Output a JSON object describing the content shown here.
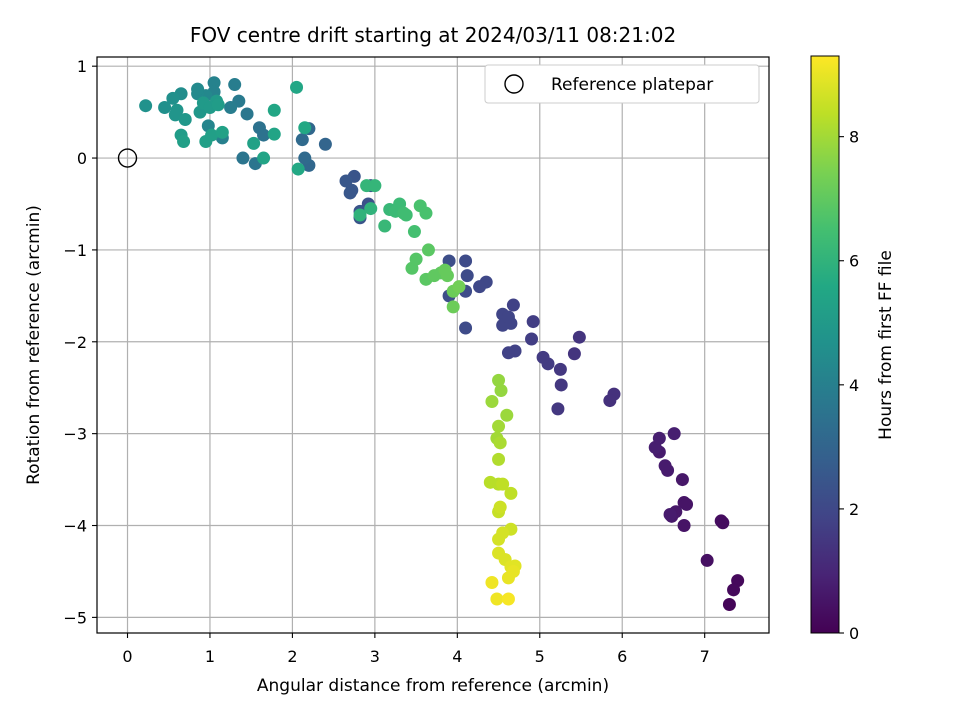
{
  "chart_data": {
    "type": "scatter",
    "title": "FOV centre drift starting at 2024/03/11 08:21:02",
    "xlabel": "Angular distance from reference (arcmin)",
    "ylabel": "Rotation from reference (arcmin)",
    "xlim": [
      -0.37,
      7.78
    ],
    "ylim": [
      -5.17,
      1.1
    ],
    "xticks": [
      0,
      1,
      2,
      3,
      4,
      5,
      6,
      7
    ],
    "yticks": [
      -5,
      -4,
      -3,
      -2,
      -1,
      0,
      1
    ],
    "grid": true,
    "legend": {
      "label": "Reference platepar",
      "placement": "top-right"
    },
    "reference_point": {
      "x": 0,
      "y": 0
    },
    "colorbar": {
      "label": "Hours from first FF file",
      "range": [
        0,
        9.3
      ],
      "ticks": [
        0,
        2,
        4,
        6,
        8
      ],
      "colormap": "viridis"
    },
    "points": [
      {
        "x": 7.3,
        "y": -4.86,
        "t": 0.1
      },
      {
        "x": 7.4,
        "y": -4.6,
        "t": 0.2
      },
      {
        "x": 7.35,
        "y": -4.7,
        "t": 0.2
      },
      {
        "x": 7.2,
        "y": -3.95,
        "t": 0.3
      },
      {
        "x": 7.22,
        "y": -3.97,
        "t": 0.3
      },
      {
        "x": 7.03,
        "y": -4.38,
        "t": 0.4
      },
      {
        "x": 6.75,
        "y": -3.75,
        "t": 0.5
      },
      {
        "x": 6.78,
        "y": -3.77,
        "t": 0.5
      },
      {
        "x": 6.75,
        "y": -4.0,
        "t": 0.5
      },
      {
        "x": 6.65,
        "y": -3.85,
        "t": 0.6
      },
      {
        "x": 6.6,
        "y": -3.9,
        "t": 0.6
      },
      {
        "x": 6.73,
        "y": -3.5,
        "t": 0.6
      },
      {
        "x": 6.55,
        "y": -3.4,
        "t": 0.7
      },
      {
        "x": 6.52,
        "y": -3.35,
        "t": 0.7
      },
      {
        "x": 6.45,
        "y": -3.2,
        "t": 0.7
      },
      {
        "x": 6.4,
        "y": -3.15,
        "t": 0.8
      },
      {
        "x": 6.45,
        "y": -3.05,
        "t": 0.8
      },
      {
        "x": 6.63,
        "y": -3.0,
        "t": 0.8
      },
      {
        "x": 6.58,
        "y": -3.88,
        "t": 0.7
      },
      {
        "x": 5.9,
        "y": -2.57,
        "t": 1.3
      },
      {
        "x": 5.85,
        "y": -2.64,
        "t": 1.3
      },
      {
        "x": 5.48,
        "y": -1.95,
        "t": 1.4
      },
      {
        "x": 5.42,
        "y": -2.13,
        "t": 1.4
      },
      {
        "x": 5.25,
        "y": -2.3,
        "t": 1.5
      },
      {
        "x": 5.22,
        "y": -2.73,
        "t": 1.5
      },
      {
        "x": 5.26,
        "y": -2.47,
        "t": 1.5
      },
      {
        "x": 5.1,
        "y": -2.24,
        "t": 1.6
      },
      {
        "x": 5.04,
        "y": -2.17,
        "t": 1.6
      },
      {
        "x": 4.92,
        "y": -1.78,
        "t": 1.7
      },
      {
        "x": 4.9,
        "y": -1.97,
        "t": 1.7
      },
      {
        "x": 4.7,
        "y": -2.1,
        "t": 1.8
      },
      {
        "x": 4.62,
        "y": -2.12,
        "t": 1.8
      },
      {
        "x": 4.68,
        "y": -1.6,
        "t": 1.8
      },
      {
        "x": 4.65,
        "y": -1.8,
        "t": 1.9
      },
      {
        "x": 4.55,
        "y": -1.7,
        "t": 1.9
      },
      {
        "x": 4.55,
        "y": -1.82,
        "t": 1.9
      },
      {
        "x": 4.62,
        "y": -1.73,
        "t": 1.9
      },
      {
        "x": 4.35,
        "y": -1.35,
        "t": 2.0
      },
      {
        "x": 4.27,
        "y": -1.4,
        "t": 2.0
      },
      {
        "x": 4.1,
        "y": -1.85,
        "t": 2.1
      },
      {
        "x": 4.1,
        "y": -1.12,
        "t": 2.1
      },
      {
        "x": 4.12,
        "y": -1.28,
        "t": 2.1
      },
      {
        "x": 4.1,
        "y": -1.45,
        "t": 2.1
      },
      {
        "x": 3.9,
        "y": -1.5,
        "t": 2.2
      },
      {
        "x": 3.9,
        "y": -1.12,
        "t": 2.2
      },
      {
        "x": 2.95,
        "y": -0.3,
        "t": 2.3
      },
      {
        "x": 2.92,
        "y": -0.5,
        "t": 2.3
      },
      {
        "x": 2.82,
        "y": -0.58,
        "t": 2.4
      },
      {
        "x": 2.82,
        "y": -0.65,
        "t": 2.4
      },
      {
        "x": 2.75,
        "y": -0.2,
        "t": 2.4
      },
      {
        "x": 2.72,
        "y": -0.35,
        "t": 2.5
      },
      {
        "x": 2.7,
        "y": -0.38,
        "t": 2.5
      },
      {
        "x": 2.65,
        "y": -0.25,
        "t": 2.5
      },
      {
        "x": 2.4,
        "y": 0.15,
        "t": 3.0
      },
      {
        "x": 2.2,
        "y": 0.32,
        "t": 3.1
      },
      {
        "x": 2.2,
        "y": -0.08,
        "t": 3.1
      },
      {
        "x": 2.15,
        "y": 0.0,
        "t": 3.2
      },
      {
        "x": 2.12,
        "y": 0.2,
        "t": 3.2
      },
      {
        "x": 1.6,
        "y": 0.33,
        "t": 3.5
      },
      {
        "x": 1.65,
        "y": 0.25,
        "t": 3.5
      },
      {
        "x": 1.55,
        "y": -0.06,
        "t": 3.6
      },
      {
        "x": 1.4,
        "y": 0.0,
        "t": 3.6
      },
      {
        "x": 1.45,
        "y": 0.48,
        "t": 3.7
      },
      {
        "x": 1.35,
        "y": 0.62,
        "t": 3.8
      },
      {
        "x": 1.3,
        "y": 0.8,
        "t": 3.9
      },
      {
        "x": 1.25,
        "y": 0.55,
        "t": 3.9
      },
      {
        "x": 1.15,
        "y": 0.22,
        "t": 4.0
      },
      {
        "x": 1.05,
        "y": 0.82,
        "t": 4.1
      },
      {
        "x": 1.05,
        "y": 0.72,
        "t": 4.1
      },
      {
        "x": 0.98,
        "y": 0.35,
        "t": 4.2
      },
      {
        "x": 0.95,
        "y": 0.68,
        "t": 4.3
      },
      {
        "x": 0.85,
        "y": 0.7,
        "t": 4.4
      },
      {
        "x": 0.85,
        "y": 0.75,
        "t": 4.4
      },
      {
        "x": 0.65,
        "y": 0.7,
        "t": 4.5
      },
      {
        "x": 0.55,
        "y": 0.65,
        "t": 4.6
      },
      {
        "x": 0.45,
        "y": 0.55,
        "t": 4.6
      },
      {
        "x": 0.22,
        "y": 0.57,
        "t": 4.7
      },
      {
        "x": 0.6,
        "y": 0.52,
        "t": 4.8
      },
      {
        "x": 0.58,
        "y": 0.47,
        "t": 4.8
      },
      {
        "x": 0.7,
        "y": 0.42,
        "t": 4.9
      },
      {
        "x": 0.88,
        "y": 0.5,
        "t": 4.9
      },
      {
        "x": 0.92,
        "y": 0.6,
        "t": 5.0
      },
      {
        "x": 1.0,
        "y": 0.55,
        "t": 5.0
      },
      {
        "x": 1.08,
        "y": 0.62,
        "t": 5.0
      },
      {
        "x": 1.1,
        "y": 0.58,
        "t": 5.1
      },
      {
        "x": 0.65,
        "y": 0.25,
        "t": 5.1
      },
      {
        "x": 0.68,
        "y": 0.18,
        "t": 5.2
      },
      {
        "x": 0.95,
        "y": 0.18,
        "t": 5.2
      },
      {
        "x": 1.02,
        "y": 0.25,
        "t": 5.2
      },
      {
        "x": 1.15,
        "y": 0.28,
        "t": 5.3
      },
      {
        "x": 1.53,
        "y": 0.16,
        "t": 5.3
      },
      {
        "x": 1.65,
        "y": 0.0,
        "t": 5.4
      },
      {
        "x": 1.78,
        "y": 0.26,
        "t": 5.4
      },
      {
        "x": 1.78,
        "y": 0.52,
        "t": 5.5
      },
      {
        "x": 2.05,
        "y": 0.77,
        "t": 5.5
      },
      {
        "x": 2.15,
        "y": 0.33,
        "t": 5.6
      },
      {
        "x": 2.07,
        "y": -0.12,
        "t": 5.6
      },
      {
        "x": 2.82,
        "y": -0.62,
        "t": 6.0
      },
      {
        "x": 2.95,
        "y": -0.55,
        "t": 6.0
      },
      {
        "x": 2.9,
        "y": -0.3,
        "t": 6.1
      },
      {
        "x": 3.0,
        "y": -0.3,
        "t": 6.1
      },
      {
        "x": 3.12,
        "y": -0.74,
        "t": 6.2
      },
      {
        "x": 3.18,
        "y": -0.56,
        "t": 6.2
      },
      {
        "x": 3.25,
        "y": -0.58,
        "t": 6.3
      },
      {
        "x": 3.3,
        "y": -0.5,
        "t": 6.3
      },
      {
        "x": 3.35,
        "y": -0.6,
        "t": 6.4
      },
      {
        "x": 3.38,
        "y": -0.62,
        "t": 6.4
      },
      {
        "x": 3.48,
        "y": -0.8,
        "t": 6.5
      },
      {
        "x": 3.55,
        "y": -0.52,
        "t": 6.6
      },
      {
        "x": 3.62,
        "y": -0.6,
        "t": 6.6
      },
      {
        "x": 3.45,
        "y": -1.2,
        "t": 6.8
      },
      {
        "x": 3.5,
        "y": -1.1,
        "t": 6.8
      },
      {
        "x": 3.65,
        "y": -1.0,
        "t": 6.9
      },
      {
        "x": 3.62,
        "y": -1.32,
        "t": 6.9
      },
      {
        "x": 3.72,
        "y": -1.28,
        "t": 7.0
      },
      {
        "x": 3.8,
        "y": -1.25,
        "t": 7.0
      },
      {
        "x": 3.85,
        "y": -1.22,
        "t": 7.1
      },
      {
        "x": 3.88,
        "y": -1.28,
        "t": 7.1
      },
      {
        "x": 3.95,
        "y": -1.45,
        "t": 7.2
      },
      {
        "x": 3.95,
        "y": -1.62,
        "t": 7.2
      },
      {
        "x": 4.02,
        "y": -1.4,
        "t": 7.3
      },
      {
        "x": 4.5,
        "y": -2.42,
        "t": 7.8
      },
      {
        "x": 4.53,
        "y": -2.53,
        "t": 7.8
      },
      {
        "x": 4.42,
        "y": -2.65,
        "t": 7.9
      },
      {
        "x": 4.6,
        "y": -2.8,
        "t": 7.9
      },
      {
        "x": 4.5,
        "y": -2.92,
        "t": 8.0
      },
      {
        "x": 4.48,
        "y": -3.05,
        "t": 8.0
      },
      {
        "x": 4.52,
        "y": -3.1,
        "t": 8.1
      },
      {
        "x": 4.5,
        "y": -3.28,
        "t": 8.2
      },
      {
        "x": 4.4,
        "y": -3.53,
        "t": 8.3
      },
      {
        "x": 4.5,
        "y": -3.55,
        "t": 8.3
      },
      {
        "x": 4.55,
        "y": -3.55,
        "t": 8.4
      },
      {
        "x": 4.65,
        "y": -3.65,
        "t": 8.4
      },
      {
        "x": 4.5,
        "y": -3.85,
        "t": 8.5
      },
      {
        "x": 4.52,
        "y": -3.8,
        "t": 8.6
      },
      {
        "x": 4.65,
        "y": -4.04,
        "t": 8.6
      },
      {
        "x": 4.55,
        "y": -4.08,
        "t": 8.7
      },
      {
        "x": 4.5,
        "y": -4.15,
        "t": 8.7
      },
      {
        "x": 4.5,
        "y": -4.3,
        "t": 8.8
      },
      {
        "x": 4.58,
        "y": -4.37,
        "t": 8.8
      },
      {
        "x": 4.65,
        "y": -4.45,
        "t": 8.9
      },
      {
        "x": 4.7,
        "y": -4.44,
        "t": 8.9
      },
      {
        "x": 4.68,
        "y": -4.5,
        "t": 9.0
      },
      {
        "x": 4.62,
        "y": -4.57,
        "t": 9.0
      },
      {
        "x": 4.42,
        "y": -4.62,
        "t": 9.1
      },
      {
        "x": 4.48,
        "y": -4.8,
        "t": 9.1
      },
      {
        "x": 4.62,
        "y": -4.8,
        "t": 9.2
      }
    ]
  }
}
